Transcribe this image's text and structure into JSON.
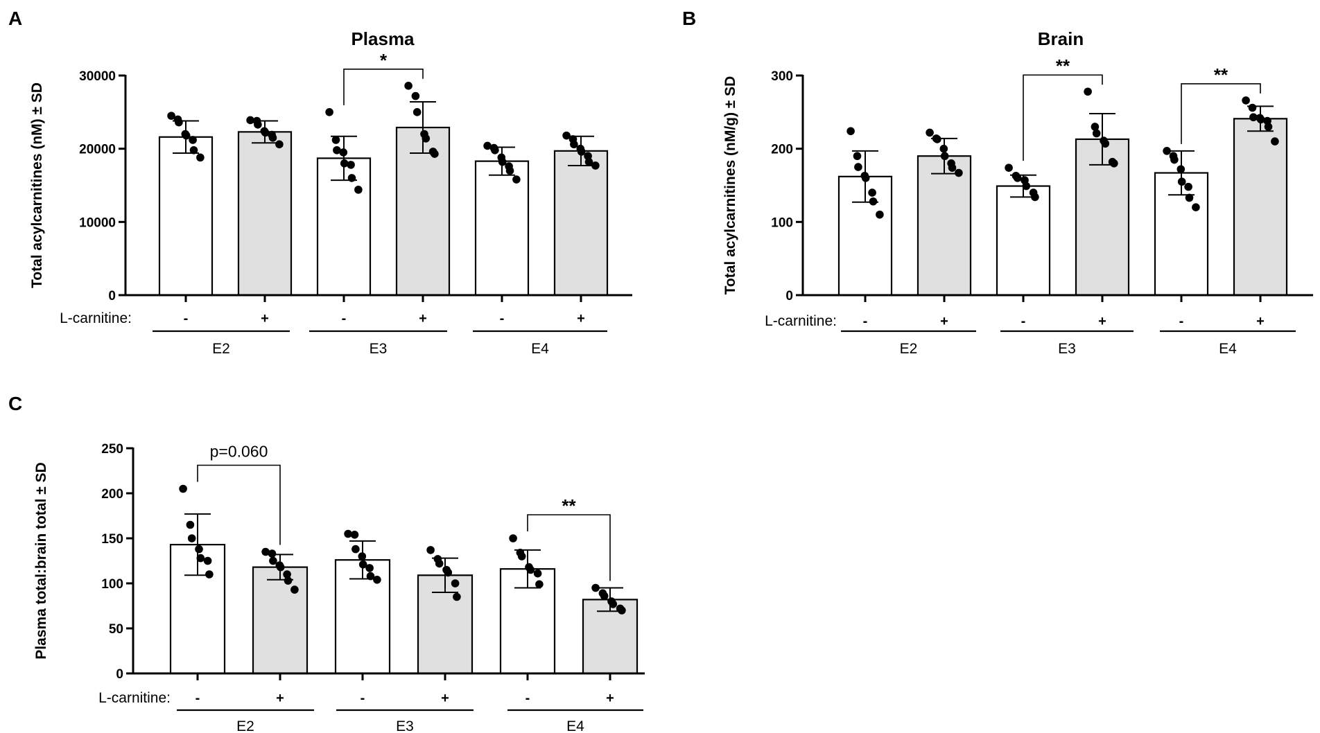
{
  "colors": {
    "control_fill": "#ffffff",
    "treated_fill": "#e0e0e0",
    "ink": "#000000"
  },
  "chart_data": [
    {
      "panel": "A",
      "type": "bar",
      "title": "Plasma",
      "ylabel": "Total acylcarnitines (nM) ± SD",
      "xlabel": "",
      "ylim": [
        0,
        30000
      ],
      "yticks": [
        0,
        10000,
        20000,
        30000
      ],
      "ytick_labels": [
        "0",
        "10000",
        "20000",
        "30000"
      ],
      "category_label": "L-carnitine:",
      "categories": [
        "-",
        "+",
        "-",
        "+",
        "-",
        "+"
      ],
      "groups": [
        "E2",
        "E3",
        "E4"
      ],
      "values": [
        21600,
        22300,
        18700,
        22900,
        18300,
        19700
      ],
      "errors": [
        2200,
        1500,
        3000,
        3500,
        1900,
        2000
      ],
      "points": [
        [
          24500,
          24000,
          23600,
          22000,
          21800,
          21200,
          19800,
          18800
        ],
        [
          23900,
          23800,
          23300,
          22400,
          22200,
          21900,
          21500,
          20600
        ],
        [
          25000,
          21200,
          19800,
          19500,
          18000,
          17800,
          16000,
          14400
        ],
        [
          28600,
          27200,
          25000,
          22000,
          21400,
          19600,
          19300
        ],
        [
          20400,
          20100,
          19800,
          18800,
          18200,
          17600,
          17000,
          15800
        ],
        [
          21800,
          21300,
          20600,
          20000,
          19600,
          19000,
          18200,
          17700
        ]
      ],
      "significance": [
        {
          "from": 2,
          "to": 3,
          "label": "*"
        }
      ]
    },
    {
      "panel": "B",
      "type": "bar",
      "title": "Brain",
      "ylabel": "Total acylcarnitines (nM/g) ± SD",
      "xlabel": "",
      "ylim": [
        0,
        300
      ],
      "yticks": [
        0,
        100,
        200,
        300
      ],
      "ytick_labels": [
        "0",
        "100",
        "200",
        "300"
      ],
      "category_label": "L-carnitine:",
      "categories": [
        "-",
        "+",
        "-",
        "+",
        "-",
        "+"
      ],
      "groups": [
        "E2",
        "E3",
        "E4"
      ],
      "values": [
        162,
        190,
        149,
        213,
        167,
        241
      ],
      "errors": [
        35,
        24,
        15,
        35,
        30,
        17
      ],
      "points": [
        [
          224,
          190,
          175,
          163,
          160,
          140,
          128,
          110
        ],
        [
          222,
          214,
          213,
          200,
          190,
          180,
          174,
          167
        ],
        [
          174,
          163,
          160,
          157,
          149,
          140,
          134
        ],
        [
          278,
          230,
          221,
          211,
          207,
          182,
          180
        ],
        [
          197,
          190,
          185,
          172,
          155,
          148,
          133,
          120
        ],
        [
          266,
          256,
          243,
          242,
          240,
          238,
          230,
          210
        ]
      ],
      "significance": [
        {
          "from": 2,
          "to": 3,
          "label": "**"
        },
        {
          "from": 4,
          "to": 5,
          "label": "**"
        }
      ]
    },
    {
      "panel": "C",
      "type": "bar",
      "title": "",
      "ylabel": "Plasma total:brain total ± SD",
      "xlabel": "",
      "ylim": [
        0,
        250
      ],
      "yticks": [
        0,
        50,
        100,
        150,
        200,
        250
      ],
      "ytick_labels": [
        "0",
        "50",
        "100",
        "150",
        "200",
        "250"
      ],
      "category_label": "L-carnitine:",
      "categories": [
        "-",
        "+",
        "-",
        "+",
        "-",
        "+"
      ],
      "groups": [
        "E2",
        "E3",
        "E4"
      ],
      "values": [
        143,
        118,
        126,
        109,
        116,
        82
      ],
      "errors": [
        34,
        14,
        21,
        19,
        21,
        13
      ],
      "points": [
        [
          205,
          165,
          150,
          138,
          128,
          125,
          110
        ],
        [
          135,
          133,
          125,
          120,
          118,
          110,
          103,
          93
        ],
        [
          155,
          154,
          138,
          130,
          121,
          117,
          108,
          104
        ],
        [
          137,
          127,
          122,
          115,
          112,
          100,
          85
        ],
        [
          150,
          134,
          130,
          118,
          115,
          111,
          99
        ],
        [
          95,
          89,
          86,
          80,
          77,
          72,
          70
        ]
      ],
      "significance": [
        {
          "from": 0,
          "to": 1,
          "label": "p=0.060",
          "plain": true
        },
        {
          "from": 4,
          "to": 5,
          "label": "**"
        }
      ]
    }
  ]
}
